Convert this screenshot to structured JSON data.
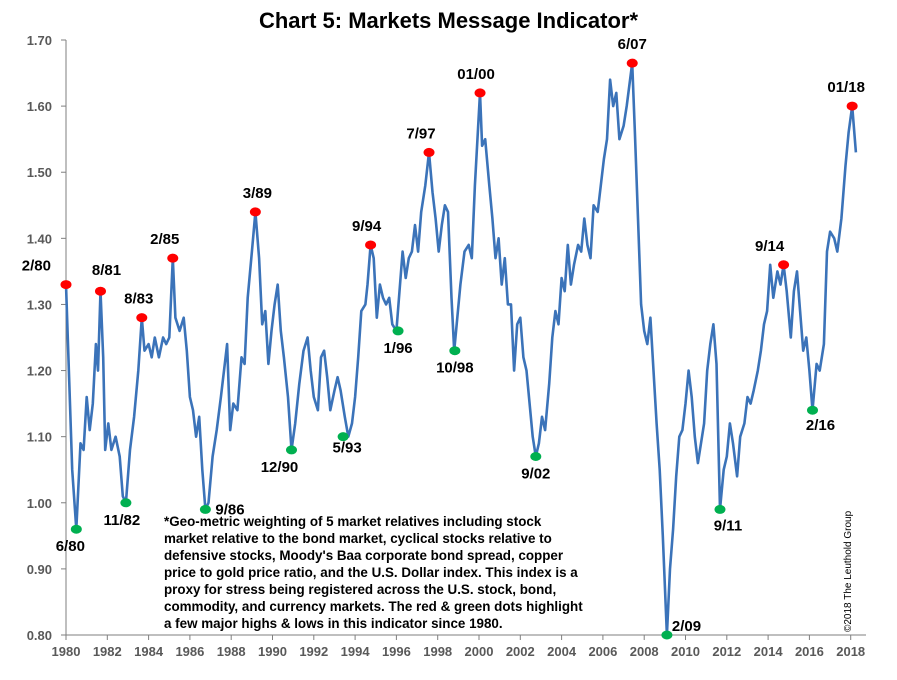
{
  "chart_data": {
    "type": "line",
    "title": "Chart 5: Markets Message Indicator*",
    "xlabel": "",
    "ylabel": "",
    "xlim": [
      1980,
      2018.5
    ],
    "ylim": [
      0.8,
      1.7
    ],
    "x_ticks": [
      "1980",
      "1982",
      "1984",
      "1986",
      "1988",
      "1990",
      "1992",
      "1994",
      "1996",
      "1998",
      "2000",
      "2002",
      "2004",
      "2006",
      "2008",
      "2010",
      "2012",
      "2014",
      "2016",
      "2018"
    ],
    "y_ticks": [
      "0.80",
      "0.90",
      "1.00",
      "1.10",
      "1.20",
      "1.30",
      "1.40",
      "1.50",
      "1.60",
      "1.70"
    ],
    "grid": false,
    "line_color": "#3b73b9",
    "high_color": "#ff0000",
    "low_color": "#00b050",
    "series": [
      {
        "values": [
          [
            1980.0,
            1.33
          ],
          [
            1980.15,
            1.19
          ],
          [
            1980.3,
            1.05
          ],
          [
            1980.5,
            0.96
          ],
          [
            1980.7,
            1.09
          ],
          [
            1980.85,
            1.08
          ],
          [
            1981.0,
            1.16
          ],
          [
            1981.15,
            1.11
          ],
          [
            1981.3,
            1.15
          ],
          [
            1981.45,
            1.24
          ],
          [
            1981.55,
            1.2
          ],
          [
            1981.67,
            1.32
          ],
          [
            1981.8,
            1.22
          ],
          [
            1981.9,
            1.08
          ],
          [
            1982.05,
            1.12
          ],
          [
            1982.2,
            1.08
          ],
          [
            1982.4,
            1.1
          ],
          [
            1982.6,
            1.07
          ],
          [
            1982.75,
            1.01
          ],
          [
            1982.9,
            1.0
          ],
          [
            1983.1,
            1.08
          ],
          [
            1983.3,
            1.13
          ],
          [
            1983.5,
            1.2
          ],
          [
            1983.67,
            1.28
          ],
          [
            1983.8,
            1.23
          ],
          [
            1984.0,
            1.24
          ],
          [
            1984.15,
            1.22
          ],
          [
            1984.3,
            1.25
          ],
          [
            1984.5,
            1.22
          ],
          [
            1984.7,
            1.25
          ],
          [
            1984.85,
            1.24
          ],
          [
            1985.0,
            1.25
          ],
          [
            1985.17,
            1.37
          ],
          [
            1985.3,
            1.28
          ],
          [
            1985.5,
            1.26
          ],
          [
            1985.7,
            1.28
          ],
          [
            1985.85,
            1.23
          ],
          [
            1986.0,
            1.16
          ],
          [
            1986.15,
            1.14
          ],
          [
            1986.3,
            1.1
          ],
          [
            1986.45,
            1.13
          ],
          [
            1986.6,
            1.05
          ],
          [
            1986.75,
            0.99
          ],
          [
            1986.9,
            1.0
          ],
          [
            1987.1,
            1.07
          ],
          [
            1987.3,
            1.11
          ],
          [
            1987.5,
            1.16
          ],
          [
            1987.65,
            1.2
          ],
          [
            1987.8,
            1.24
          ],
          [
            1987.95,
            1.11
          ],
          [
            1988.1,
            1.15
          ],
          [
            1988.3,
            1.14
          ],
          [
            1988.5,
            1.22
          ],
          [
            1988.65,
            1.21
          ],
          [
            1988.8,
            1.31
          ],
          [
            1989.0,
            1.38
          ],
          [
            1989.17,
            1.44
          ],
          [
            1989.35,
            1.37
          ],
          [
            1989.5,
            1.27
          ],
          [
            1989.65,
            1.29
          ],
          [
            1989.8,
            1.21
          ],
          [
            1989.95,
            1.26
          ],
          [
            1990.1,
            1.3
          ],
          [
            1990.25,
            1.33
          ],
          [
            1990.4,
            1.26
          ],
          [
            1990.55,
            1.22
          ],
          [
            1990.75,
            1.16
          ],
          [
            1990.92,
            1.08
          ],
          [
            1991.1,
            1.12
          ],
          [
            1991.3,
            1.18
          ],
          [
            1991.5,
            1.23
          ],
          [
            1991.7,
            1.25
          ],
          [
            1991.85,
            1.2
          ],
          [
            1992.0,
            1.16
          ],
          [
            1992.2,
            1.14
          ],
          [
            1992.35,
            1.22
          ],
          [
            1992.5,
            1.23
          ],
          [
            1992.65,
            1.19
          ],
          [
            1992.8,
            1.14
          ],
          [
            1993.0,
            1.17
          ],
          [
            1993.15,
            1.19
          ],
          [
            1993.3,
            1.17
          ],
          [
            1993.5,
            1.13
          ],
          [
            1993.67,
            1.1
          ],
          [
            1993.85,
            1.12
          ],
          [
            1994.0,
            1.16
          ],
          [
            1994.15,
            1.22
          ],
          [
            1994.3,
            1.29
          ],
          [
            1994.5,
            1.3
          ],
          [
            1994.6,
            1.33
          ],
          [
            1994.75,
            1.39
          ],
          [
            1994.9,
            1.37
          ],
          [
            1995.05,
            1.28
          ],
          [
            1995.2,
            1.33
          ],
          [
            1995.35,
            1.31
          ],
          [
            1995.5,
            1.3
          ],
          [
            1995.65,
            1.31
          ],
          [
            1995.8,
            1.27
          ],
          [
            1996.0,
            1.26
          ],
          [
            1996.15,
            1.32
          ],
          [
            1996.3,
            1.38
          ],
          [
            1996.45,
            1.34
          ],
          [
            1996.6,
            1.37
          ],
          [
            1996.75,
            1.38
          ],
          [
            1996.9,
            1.42
          ],
          [
            1997.05,
            1.38
          ],
          [
            1997.2,
            1.44
          ],
          [
            1997.4,
            1.48
          ],
          [
            1997.58,
            1.53
          ],
          [
            1997.75,
            1.47
          ],
          [
            1997.9,
            1.43
          ],
          [
            1998.05,
            1.38
          ],
          [
            1998.2,
            1.42
          ],
          [
            1998.35,
            1.45
          ],
          [
            1998.5,
            1.44
          ],
          [
            1998.67,
            1.31
          ],
          [
            1998.8,
            1.23
          ],
          [
            1998.95,
            1.28
          ],
          [
            1999.1,
            1.33
          ],
          [
            1999.3,
            1.38
          ],
          [
            1999.5,
            1.39
          ],
          [
            1999.65,
            1.37
          ],
          [
            1999.8,
            1.48
          ],
          [
            2000.05,
            1.62
          ],
          [
            2000.15,
            1.54
          ],
          [
            2000.3,
            1.55
          ],
          [
            2000.5,
            1.48
          ],
          [
            2000.65,
            1.43
          ],
          [
            2000.8,
            1.37
          ],
          [
            2000.95,
            1.4
          ],
          [
            2001.1,
            1.33
          ],
          [
            2001.25,
            1.37
          ],
          [
            2001.4,
            1.3
          ],
          [
            2001.55,
            1.3
          ],
          [
            2001.7,
            1.2
          ],
          [
            2001.85,
            1.27
          ],
          [
            2002.0,
            1.28
          ],
          [
            2002.15,
            1.22
          ],
          [
            2002.3,
            1.2
          ],
          [
            2002.45,
            1.15
          ],
          [
            2002.6,
            1.1
          ],
          [
            2002.75,
            1.07
          ],
          [
            2002.9,
            1.09
          ],
          [
            2003.05,
            1.13
          ],
          [
            2003.2,
            1.11
          ],
          [
            2003.4,
            1.18
          ],
          [
            2003.55,
            1.25
          ],
          [
            2003.7,
            1.29
          ],
          [
            2003.85,
            1.27
          ],
          [
            2004.0,
            1.34
          ],
          [
            2004.15,
            1.32
          ],
          [
            2004.3,
            1.39
          ],
          [
            2004.45,
            1.33
          ],
          [
            2004.6,
            1.36
          ],
          [
            2004.8,
            1.39
          ],
          [
            2004.95,
            1.38
          ],
          [
            2005.1,
            1.43
          ],
          [
            2005.25,
            1.39
          ],
          [
            2005.4,
            1.37
          ],
          [
            2005.55,
            1.45
          ],
          [
            2005.75,
            1.44
          ],
          [
            2005.9,
            1.48
          ],
          [
            2006.05,
            1.52
          ],
          [
            2006.2,
            1.55
          ],
          [
            2006.35,
            1.64
          ],
          [
            2006.5,
            1.6
          ],
          [
            2006.65,
            1.62
          ],
          [
            2006.8,
            1.55
          ],
          [
            2007.0,
            1.57
          ],
          [
            2007.15,
            1.6
          ],
          [
            2007.42,
            1.665
          ],
          [
            2007.55,
            1.56
          ],
          [
            2007.7,
            1.43
          ],
          [
            2007.85,
            1.3
          ],
          [
            2008.0,
            1.26
          ],
          [
            2008.15,
            1.24
          ],
          [
            2008.3,
            1.28
          ],
          [
            2008.45,
            1.2
          ],
          [
            2008.6,
            1.12
          ],
          [
            2008.75,
            1.05
          ],
          [
            2008.9,
            0.95
          ],
          [
            2009.1,
            0.8
          ],
          [
            2009.25,
            0.9
          ],
          [
            2009.4,
            0.96
          ],
          [
            2009.55,
            1.04
          ],
          [
            2009.7,
            1.1
          ],
          [
            2009.85,
            1.11
          ],
          [
            2010.0,
            1.15
          ],
          [
            2010.15,
            1.2
          ],
          [
            2010.3,
            1.16
          ],
          [
            2010.45,
            1.1
          ],
          [
            2010.6,
            1.06
          ],
          [
            2010.75,
            1.09
          ],
          [
            2010.9,
            1.12
          ],
          [
            2011.05,
            1.2
          ],
          [
            2011.2,
            1.24
          ],
          [
            2011.35,
            1.27
          ],
          [
            2011.5,
            1.21
          ],
          [
            2011.67,
            0.99
          ],
          [
            2011.85,
            1.05
          ],
          [
            2012.0,
            1.07
          ],
          [
            2012.15,
            1.12
          ],
          [
            2012.3,
            1.09
          ],
          [
            2012.5,
            1.04
          ],
          [
            2012.65,
            1.1
          ],
          [
            2012.85,
            1.12
          ],
          [
            2013.0,
            1.16
          ],
          [
            2013.15,
            1.15
          ],
          [
            2013.3,
            1.17
          ],
          [
            2013.5,
            1.2
          ],
          [
            2013.65,
            1.23
          ],
          [
            2013.8,
            1.27
          ],
          [
            2013.95,
            1.29
          ],
          [
            2014.1,
            1.36
          ],
          [
            2014.25,
            1.31
          ],
          [
            2014.45,
            1.35
          ],
          [
            2014.6,
            1.33
          ],
          [
            2014.75,
            1.36
          ],
          [
            2014.9,
            1.32
          ],
          [
            2015.1,
            1.25
          ],
          [
            2015.25,
            1.32
          ],
          [
            2015.4,
            1.35
          ],
          [
            2015.55,
            1.29
          ],
          [
            2015.7,
            1.23
          ],
          [
            2015.85,
            1.25
          ],
          [
            2016.0,
            1.2
          ],
          [
            2016.15,
            1.14
          ],
          [
            2016.35,
            1.21
          ],
          [
            2016.5,
            1.2
          ],
          [
            2016.7,
            1.24
          ],
          [
            2016.85,
            1.38
          ],
          [
            2017.0,
            1.41
          ],
          [
            2017.2,
            1.4
          ],
          [
            2017.35,
            1.38
          ],
          [
            2017.55,
            1.43
          ],
          [
            2017.75,
            1.51
          ],
          [
            2017.9,
            1.56
          ],
          [
            2018.07,
            1.6
          ],
          [
            2018.25,
            1.53
          ]
        ]
      }
    ],
    "highs": [
      {
        "x": 1980.0,
        "y": 1.33,
        "label": "2/80"
      },
      {
        "x": 1981.67,
        "y": 1.32,
        "label": "8/81"
      },
      {
        "x": 1983.67,
        "y": 1.28,
        "label": "8/83"
      },
      {
        "x": 1985.17,
        "y": 1.37,
        "label": "2/85"
      },
      {
        "x": 1989.17,
        "y": 1.44,
        "label": "3/89"
      },
      {
        "x": 1994.75,
        "y": 1.39,
        "label": "9/94"
      },
      {
        "x": 1997.58,
        "y": 1.53,
        "label": "7/97"
      },
      {
        "x": 2000.05,
        "y": 1.62,
        "label": "01/00"
      },
      {
        "x": 2007.42,
        "y": 1.665,
        "label": "6/07"
      },
      {
        "x": 2014.75,
        "y": 1.36,
        "label": "9/14"
      },
      {
        "x": 2018.07,
        "y": 1.6,
        "label": "01/18"
      }
    ],
    "lows": [
      {
        "x": 1980.5,
        "y": 0.96,
        "label": "6/80"
      },
      {
        "x": 1982.9,
        "y": 1.0,
        "label": "11/82"
      },
      {
        "x": 1986.75,
        "y": 0.99,
        "label": "9/86"
      },
      {
        "x": 1990.92,
        "y": 1.08,
        "label": "12/90"
      },
      {
        "x": 1993.42,
        "y": 1.1,
        "label": "5/93"
      },
      {
        "x": 1996.08,
        "y": 1.26,
        "label": "1/96"
      },
      {
        "x": 1998.83,
        "y": 1.23,
        "label": "10/98"
      },
      {
        "x": 2002.75,
        "y": 1.07,
        "label": "9/02"
      },
      {
        "x": 2009.1,
        "y": 0.8,
        "label": "2/09"
      },
      {
        "x": 2011.67,
        "y": 0.99,
        "label": "9/11"
      },
      {
        "x": 2016.15,
        "y": 1.14,
        "label": "2/16"
      }
    ]
  },
  "footnote": "*Geo-metric weighting of 5 market relatives including stock\nmarket relative to the bond market, cyclical stocks relative to\ndefensive stocks, Moody's Baa corporate bond spread, copper\nprice to gold price ratio, and the U.S. Dollar index. This index is a\nproxy for stress being registered across the U.S. stock, bond,\ncommodity, and currency markets. The red & green dots highlight\na few major highs & lows in this indicator since 1980.",
  "credit": "©2018 The Leuthold Group"
}
